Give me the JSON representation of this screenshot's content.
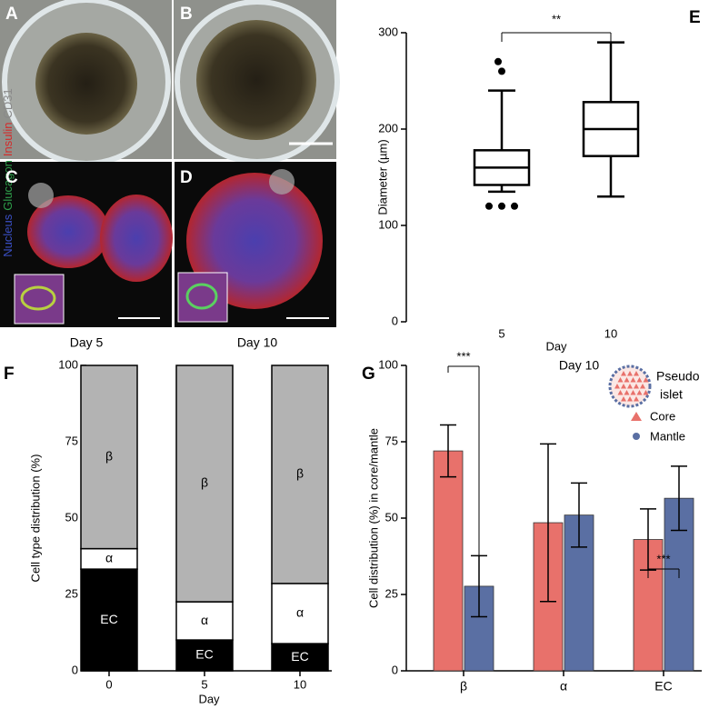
{
  "panel_labels": [
    "A",
    "B",
    "C",
    "D",
    "E",
    "F",
    "G"
  ],
  "micrographs": {
    "stain_label": [
      {
        "text": "Nucleus",
        "color": "#3a4fc4"
      },
      {
        "text": "Glucagon",
        "color": "#2e9e4a"
      },
      {
        "text": "Insulin",
        "color": "#d42a2a"
      },
      {
        "text": "CD31",
        "color": "#8a8a8a"
      }
    ],
    "captions": [
      "Day 5",
      "Day 10"
    ]
  },
  "chart_data": [
    {
      "type": "box",
      "ylabel": "Diameter (µm)",
      "xlabel": "Day",
      "categories": [
        "5",
        "10"
      ],
      "color": "#000000",
      "boxes": [
        {
          "whislo": 135,
          "q1": 142,
          "med": 160,
          "q3": 178,
          "whishi": 240,
          "fliers": [
            270,
            260,
            120,
            120,
            120
          ]
        },
        {
          "whislo": 130,
          "q1": 172,
          "med": 200,
          "q3": 228,
          "whishi": 290,
          "fliers": []
        }
      ],
      "ylim": [
        0,
        300
      ],
      "yticks": [
        0,
        100,
        200,
        300
      ],
      "annotations": [
        "**"
      ]
    },
    {
      "type": "stacked_bar",
      "ylabel": "Cell type distribution (%)",
      "xlabel": "Day",
      "categories": [
        "0",
        "5",
        "10"
      ],
      "series": [
        {
          "name": "EC",
          "color": "#000000",
          "label_color": "#ffffff",
          "values": [
            33.3,
            10.1,
            8.9
          ]
        },
        {
          "name": "α",
          "color": "#ffffff",
          "label_color": "#000000",
          "values": [
            6.7,
            12.5,
            19.7
          ]
        },
        {
          "name": "β",
          "color": "#b3b3b3",
          "label_color": "#000000",
          "values": [
            60,
            77.4,
            71.4
          ]
        }
      ],
      "ylim": [
        0,
        100
      ],
      "yticks": [
        0,
        25,
        50,
        75,
        100
      ]
    },
    {
      "type": "grouped_bar",
      "title": "Day 10",
      "ylabel": "Cell distribution (%) in core/mantle",
      "categories": [
        "β",
        "α",
        "EC"
      ],
      "legend_title": [
        "Pseudo",
        "islet"
      ],
      "series": [
        {
          "name": "Core",
          "color": "#e8716b",
          "values": [
            72,
            48.5,
            43
          ],
          "errors": [
            8.5,
            25.8,
            10
          ]
        },
        {
          "name": "Mantle",
          "color": "#5a6fa3",
          "values": [
            27.7,
            51,
            56.5
          ],
          "errors": [
            10,
            10.5,
            10.5
          ]
        }
      ],
      "ylim": [
        0,
        100
      ],
      "yticks": [
        0,
        25,
        50,
        75,
        100
      ],
      "annotations": [
        "***",
        "***"
      ]
    }
  ]
}
